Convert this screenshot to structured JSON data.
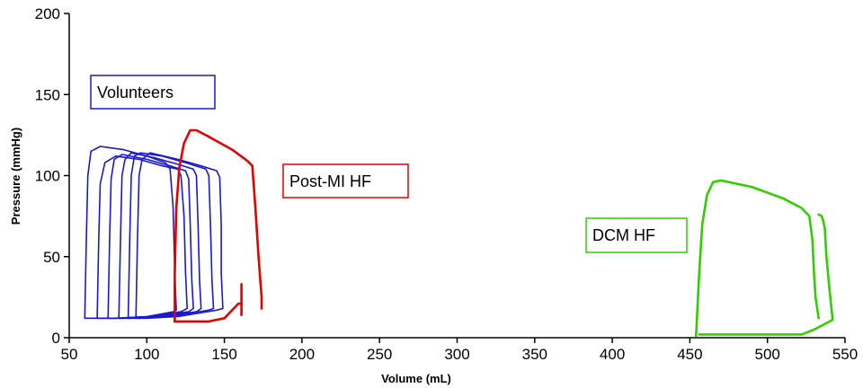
{
  "chart_data": {
    "type": "line",
    "xlabel": "Volume (mL)",
    "ylabel": "Pressure (mmHg)",
    "xlim": [
      50,
      550
    ],
    "ylim": [
      0,
      200
    ],
    "xticks": [
      "50",
      "100",
      "150",
      "200",
      "250",
      "300",
      "350",
      "400",
      "450",
      "500",
      "550"
    ],
    "yticks": [
      "0",
      "50",
      "100",
      "150",
      "200"
    ],
    "grid": false,
    "annotations": [
      {
        "text": "Volunteers",
        "color": "#1a1acc",
        "series": "volunteers"
      },
      {
        "text": "Post-MI HF",
        "color": "#e00000",
        "series": "postmi"
      },
      {
        "text": "DCM HF",
        "color": "#33cc00",
        "series": "dcm"
      }
    ],
    "series": [
      {
        "group": "volunteers",
        "color": "#1a1acc",
        "points": [
          [
            60,
            12
          ],
          [
            61,
            60
          ],
          [
            62,
            100
          ],
          [
            64,
            115
          ],
          [
            70,
            118
          ],
          [
            85,
            116
          ],
          [
            100,
            112
          ],
          [
            112,
            108
          ],
          [
            115,
            104
          ],
          [
            117,
            80
          ],
          [
            118,
            40
          ],
          [
            119,
            17
          ],
          [
            117,
            16
          ],
          [
            100,
            13
          ],
          [
            80,
            12
          ],
          [
            60,
            12
          ]
        ]
      },
      {
        "group": "volunteers",
        "color": "#1a1acc",
        "points": [
          [
            68,
            12
          ],
          [
            69,
            60
          ],
          [
            70,
            95
          ],
          [
            73,
            108
          ],
          [
            80,
            112
          ],
          [
            95,
            110
          ],
          [
            110,
            106
          ],
          [
            120,
            104
          ],
          [
            122,
            100
          ],
          [
            124,
            75
          ],
          [
            125,
            40
          ],
          [
            126,
            18
          ],
          [
            122,
            16
          ],
          [
            100,
            13
          ],
          [
            80,
            12
          ],
          [
            68,
            12
          ]
        ]
      },
      {
        "group": "volunteers",
        "color": "#1a1acc",
        "points": [
          [
            75,
            12
          ],
          [
            76,
            60
          ],
          [
            77,
            98
          ],
          [
            79,
            110
          ],
          [
            84,
            113
          ],
          [
            100,
            110
          ],
          [
            115,
            106
          ],
          [
            125,
            103
          ],
          [
            127,
            98
          ],
          [
            128,
            70
          ],
          [
            129,
            35
          ],
          [
            130,
            18
          ],
          [
            127,
            16
          ],
          [
            105,
            13
          ],
          [
            85,
            12
          ],
          [
            75,
            12
          ]
        ]
      },
      {
        "group": "volunteers",
        "color": "#1a1acc",
        "points": [
          [
            82,
            12
          ],
          [
            83,
            60
          ],
          [
            84,
            100
          ],
          [
            86,
            110
          ],
          [
            90,
            114
          ],
          [
            105,
            111
          ],
          [
            120,
            107
          ],
          [
            130,
            104
          ],
          [
            132,
            100
          ],
          [
            133,
            70
          ],
          [
            134,
            35
          ],
          [
            135,
            18
          ],
          [
            132,
            16
          ],
          [
            110,
            13
          ],
          [
            90,
            12
          ],
          [
            82,
            12
          ]
        ]
      },
      {
        "group": "volunteers",
        "color": "#1a1acc",
        "points": [
          [
            88,
            12
          ],
          [
            89,
            60
          ],
          [
            90,
            100
          ],
          [
            92,
            112
          ],
          [
            96,
            114
          ],
          [
            110,
            112
          ],
          [
            125,
            108
          ],
          [
            138,
            104
          ],
          [
            140,
            100
          ],
          [
            141,
            70
          ],
          [
            142,
            35
          ],
          [
            143,
            18
          ],
          [
            140,
            17
          ],
          [
            115,
            13
          ],
          [
            95,
            12
          ],
          [
            88,
            12
          ]
        ]
      },
      {
        "group": "volunteers",
        "color": "#1a1acc",
        "points": [
          [
            93,
            12
          ],
          [
            94,
            60
          ],
          [
            95,
            100
          ],
          [
            97,
            110
          ],
          [
            102,
            114
          ],
          [
            120,
            110
          ],
          [
            135,
            106
          ],
          [
            145,
            103
          ],
          [
            147,
            99
          ],
          [
            148,
            70
          ],
          [
            148,
            40
          ],
          [
            149,
            18
          ],
          [
            145,
            17
          ],
          [
            120,
            13
          ],
          [
            100,
            12
          ],
          [
            93,
            12
          ]
        ]
      },
      {
        "group": "postmi",
        "color": "#e00000",
        "points": [
          [
            118,
            10
          ],
          [
            118,
            40
          ],
          [
            119,
            80
          ],
          [
            121,
            105
          ],
          [
            124,
            120
          ],
          [
            128,
            128
          ],
          [
            132,
            128
          ],
          [
            140,
            124
          ],
          [
            155,
            116
          ],
          [
            165,
            109
          ],
          [
            168,
            106
          ],
          [
            170,
            80
          ],
          [
            172,
            50
          ],
          [
            174,
            25
          ],
          [
            174,
            18
          ]
        ]
      },
      {
        "group": "postmi",
        "color": "#e00000",
        "points": [
          [
            118,
            10
          ],
          [
            140,
            10
          ],
          [
            150,
            12
          ],
          [
            156,
            18
          ],
          [
            159,
            21
          ],
          [
            161,
            21
          ]
        ]
      },
      {
        "group": "postmi",
        "color": "#e00000",
        "points": [
          [
            161,
            14
          ],
          [
            161,
            33
          ]
        ]
      },
      {
        "group": "dcm",
        "color": "#33cc00",
        "points": [
          [
            454,
            1
          ],
          [
            456,
            40
          ],
          [
            458,
            70
          ],
          [
            461,
            88
          ],
          [
            465,
            96
          ],
          [
            470,
            97
          ],
          [
            490,
            93
          ],
          [
            510,
            86
          ],
          [
            522,
            80
          ],
          [
            527,
            75
          ],
          [
            529,
            60
          ],
          [
            530,
            40
          ],
          [
            531,
            25
          ],
          [
            533,
            12
          ]
        ]
      },
      {
        "group": "dcm",
        "color": "#33cc00",
        "points": [
          [
            456,
            2
          ],
          [
            480,
            2
          ],
          [
            505,
            2
          ],
          [
            522,
            2
          ],
          [
            530,
            5
          ],
          [
            536,
            8
          ],
          [
            542,
            11
          ],
          [
            540,
            30
          ],
          [
            538,
            50
          ],
          [
            537,
            67
          ],
          [
            536,
            72
          ],
          [
            535,
            75
          ],
          [
            533,
            76
          ]
        ]
      }
    ]
  }
}
